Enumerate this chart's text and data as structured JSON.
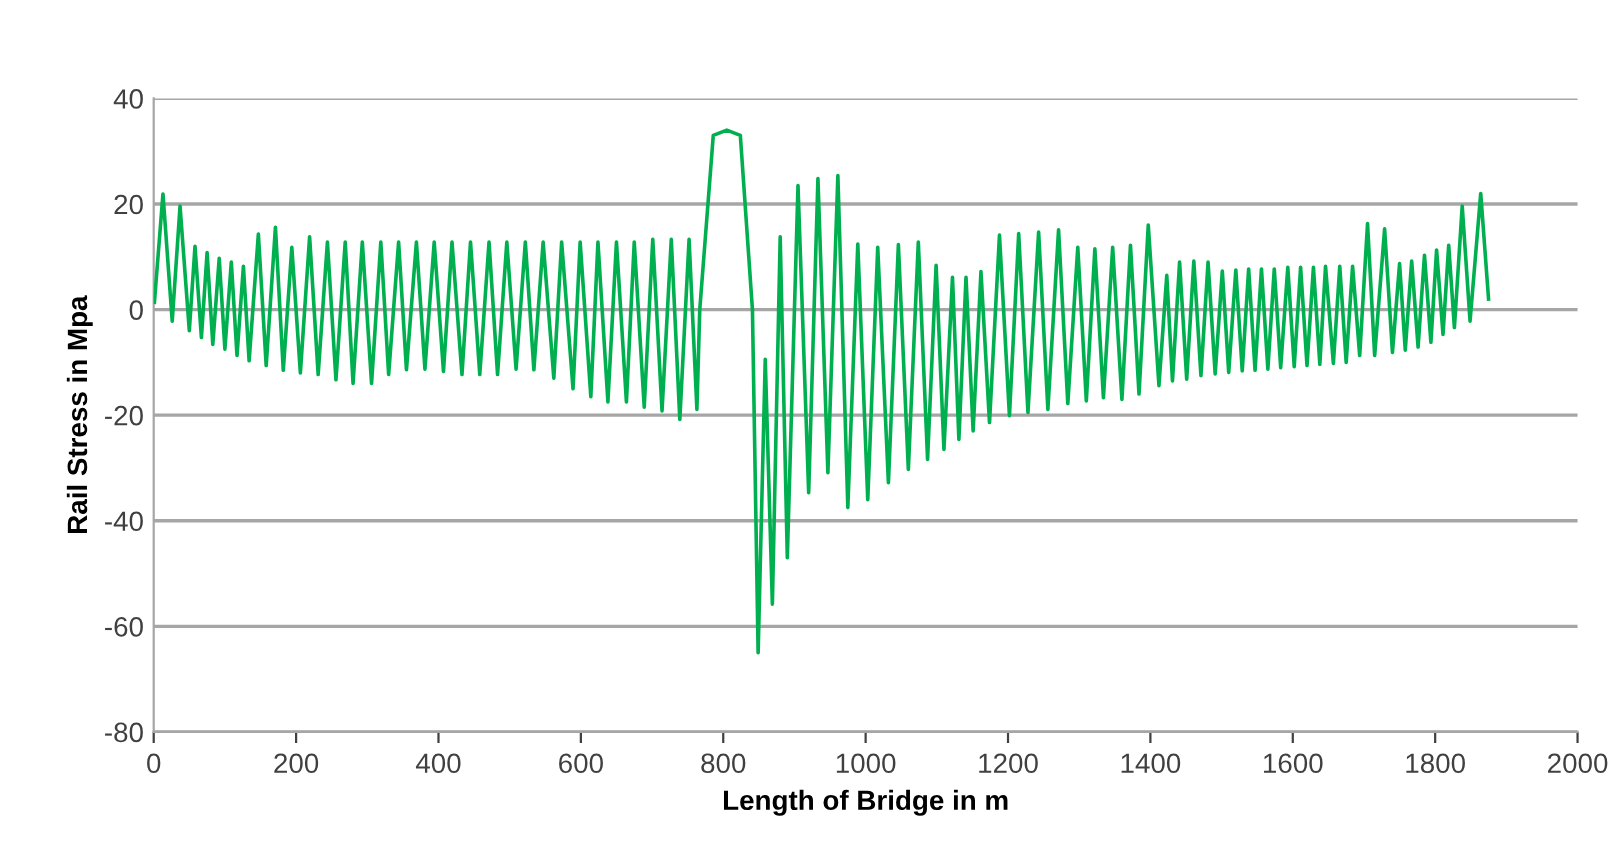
{
  "chart_data": {
    "type": "line",
    "xlabel": "Length of Bridge in m",
    "ylabel": "Rail Stress in Mpa",
    "xlim": [
      0,
      2000
    ],
    "xticks": [
      0,
      200,
      400,
      600,
      800,
      1000,
      1200,
      1400,
      1600,
      1800,
      2000
    ],
    "ylim": [
      -80,
      40
    ],
    "yticks": [
      -80,
      -60,
      -40,
      -20,
      0,
      20,
      40
    ],
    "grid": "y",
    "marker": "none",
    "line_style": "solid",
    "series": [
      {
        "color": "#00b050",
        "x": [
          1,
          13,
          26,
          37,
          50,
          58,
          67,
          75,
          83,
          92,
          100,
          109,
          117,
          126,
          134,
          147,
          158,
          171,
          182,
          194,
          206,
          219,
          231,
          244,
          256,
          269,
          280,
          293,
          306,
          319,
          330,
          344,
          355,
          369,
          381,
          394,
          407,
          419,
          433,
          445,
          458,
          471,
          483,
          496,
          509,
          522,
          534,
          547,
          562,
          573,
          589,
          599,
          614,
          624,
          638,
          650,
          664,
          675,
          689,
          701,
          714,
          727,
          739,
          752,
          763,
          767,
          786,
          805,
          824,
          841,
          849,
          859,
          869,
          880,
          890,
          905,
          920,
          933,
          947,
          961,
          975,
          989,
          1003,
          1017,
          1032,
          1046,
          1060,
          1074,
          1087,
          1099,
          1110,
          1122,
          1131,
          1141,
          1151,
          1162,
          1174,
          1188,
          1202,
          1215,
          1228,
          1243,
          1256,
          1271,
          1284,
          1298,
          1310,
          1322,
          1334,
          1347,
          1360,
          1372,
          1384,
          1397,
          1412,
          1423,
          1431,
          1441,
          1451,
          1461,
          1471,
          1481,
          1491,
          1501,
          1510,
          1520,
          1529,
          1538,
          1547,
          1556,
          1565,
          1574,
          1583,
          1593,
          1602,
          1611,
          1620,
          1629,
          1638,
          1646,
          1657,
          1666,
          1675,
          1684,
          1694,
          1705,
          1715,
          1729,
          1740,
          1750,
          1758,
          1767,
          1776,
          1785,
          1794,
          1802,
          1811,
          1819,
          1827,
          1838,
          1849,
          1864,
          1875
        ],
        "values": [
          1.4,
          21.9,
          -2.2,
          19.6,
          -4,
          12,
          -5.3,
          10.8,
          -6.6,
          9.7,
          -7.5,
          9,
          -8.7,
          8.2,
          -9.7,
          14.3,
          -10.6,
          15.6,
          -11.5,
          11.8,
          -12,
          13.8,
          -12.3,
          12.8,
          -13.3,
          12.8,
          -14,
          12.8,
          -14,
          12.8,
          -12.3,
          12.8,
          -11.4,
          12.8,
          -11.3,
          12.8,
          -11.7,
          12.8,
          -12.3,
          12.8,
          -12.3,
          12.8,
          -12.3,
          12.8,
          -11.3,
          12.8,
          -11.4,
          12.8,
          -13,
          12.8,
          -15,
          12.8,
          -16.5,
          12.8,
          -17.5,
          12.8,
          -17.5,
          12.8,
          -18.5,
          13.3,
          -19.2,
          13.3,
          -20.8,
          13.3,
          -18.9,
          0,
          33,
          34,
          33,
          0,
          -65,
          -9.4,
          -55.8,
          13.8,
          -47,
          23.5,
          -34.7,
          24.8,
          -30.9,
          25.4,
          -37.5,
          12.4,
          -36,
          11.8,
          -32.8,
          12.3,
          -30.3,
          12.8,
          -28.4,
          8.4,
          -26.5,
          6.1,
          -24.6,
          6.1,
          -23,
          7.2,
          -21.4,
          14.1,
          -20.1,
          14.4,
          -19.5,
          14.7,
          -18.9,
          15.1,
          -17.8,
          11.8,
          -17.3,
          11.5,
          -16.7,
          11.8,
          -17,
          12.2,
          -16,
          16,
          -14.4,
          6.5,
          -13.5,
          9,
          -13.2,
          9.2,
          -12.5,
          9,
          -12.2,
          7.3,
          -11.9,
          7.5,
          -11.6,
          7.7,
          -11.5,
          7.7,
          -11.3,
          7.7,
          -11,
          8,
          -10.8,
          8,
          -10.6,
          8,
          -10.4,
          8.2,
          -10.2,
          8.2,
          -10,
          8.2,
          -8.7,
          16.3,
          -8.7,
          15.3,
          -8.1,
          8.7,
          -7.7,
          9.2,
          -7.1,
          10.3,
          -6.2,
          11.3,
          -4.7,
          12.2,
          -3.4,
          19.6,
          -2.2,
          22,
          2
        ]
      }
    ]
  }
}
